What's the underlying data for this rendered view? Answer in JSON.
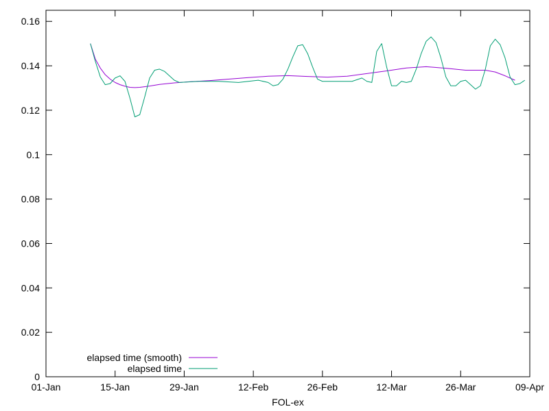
{
  "chart_data": {
    "type": "line",
    "xlabel": "FOL-ex",
    "ylabel": "",
    "title": "",
    "x_type": "date",
    "xlim": [
      "2014-01-01",
      "2014-04-09"
    ],
    "ylim": [
      0,
      0.165
    ],
    "x_ticks": [
      {
        "date": "2014-01-01",
        "label": "01-Jan"
      },
      {
        "date": "2014-01-15",
        "label": "15-Jan"
      },
      {
        "date": "2014-01-29",
        "label": "29-Jan"
      },
      {
        "date": "2014-02-12",
        "label": "12-Feb"
      },
      {
        "date": "2014-02-26",
        "label": "26-Feb"
      },
      {
        "date": "2014-03-12",
        "label": "12-Mar"
      },
      {
        "date": "2014-03-26",
        "label": "26-Mar"
      },
      {
        "date": "2014-04-09",
        "label": "09-Apr"
      }
    ],
    "y_ticks": [
      {
        "value": 0,
        "label": "0"
      },
      {
        "value": 0.02,
        "label": "0.02"
      },
      {
        "value": 0.04,
        "label": "0.04"
      },
      {
        "value": 0.06,
        "label": "0.06"
      },
      {
        "value": 0.08,
        "label": "0.08"
      },
      {
        "value": 0.1,
        "label": "0.1"
      },
      {
        "value": 0.12,
        "label": "0.12"
      },
      {
        "value": 0.14,
        "label": "0.14"
      },
      {
        "value": 0.16,
        "label": "0.16"
      }
    ],
    "grid": false,
    "legend_position": "bottom-left",
    "series": [
      {
        "name": "elapsed time (smooth)",
        "color": "#9400d3",
        "points": [
          [
            "2014-01-10",
            0.15
          ],
          [
            "2014-01-11",
            0.143
          ],
          [
            "2014-01-12",
            0.139
          ],
          [
            "2014-01-13",
            0.136
          ],
          [
            "2014-01-14",
            0.134
          ],
          [
            "2014-01-15",
            0.1325
          ],
          [
            "2014-01-16",
            0.1315
          ],
          [
            "2014-01-17",
            0.1308
          ],
          [
            "2014-01-18",
            0.1303
          ],
          [
            "2014-01-19",
            0.1302
          ],
          [
            "2014-01-20",
            0.1303
          ],
          [
            "2014-01-22",
            0.1309
          ],
          [
            "2014-01-24",
            0.1316
          ],
          [
            "2014-01-27",
            0.1323
          ],
          [
            "2014-01-30",
            0.1328
          ],
          [
            "2014-02-03",
            0.1333
          ],
          [
            "2014-02-07",
            0.134
          ],
          [
            "2014-02-11",
            0.1347
          ],
          [
            "2014-02-15",
            0.1353
          ],
          [
            "2014-02-19",
            0.1356
          ],
          [
            "2014-02-23",
            0.1352
          ],
          [
            "2014-02-27",
            0.1349
          ],
          [
            "2014-03-03",
            0.1353
          ],
          [
            "2014-03-07",
            0.1365
          ],
          [
            "2014-03-11",
            0.1377
          ],
          [
            "2014-03-15",
            0.139
          ],
          [
            "2014-03-19",
            0.1396
          ],
          [
            "2014-03-23",
            0.1389
          ],
          [
            "2014-03-27",
            0.138
          ],
          [
            "2014-03-31",
            0.138
          ],
          [
            "2014-04-02",
            0.1372
          ],
          [
            "2014-04-04",
            0.1355
          ],
          [
            "2014-04-06",
            0.1335
          ]
        ]
      },
      {
        "name": "elapsed time",
        "color": "#009e73",
        "points": [
          [
            "2014-01-10",
            0.15
          ],
          [
            "2014-01-11",
            0.142
          ],
          [
            "2014-01-12",
            0.135
          ],
          [
            "2014-01-13",
            0.1315
          ],
          [
            "2014-01-14",
            0.132
          ],
          [
            "2014-01-15",
            0.1345
          ],
          [
            "2014-01-16",
            0.1355
          ],
          [
            "2014-01-17",
            0.133
          ],
          [
            "2014-01-18",
            0.1255
          ],
          [
            "2014-01-19",
            0.117
          ],
          [
            "2014-01-20",
            0.118
          ],
          [
            "2014-01-21",
            0.126
          ],
          [
            "2014-01-22",
            0.1345
          ],
          [
            "2014-01-23",
            0.138
          ],
          [
            "2014-01-24",
            0.1385
          ],
          [
            "2014-01-25",
            0.1375
          ],
          [
            "2014-01-26",
            0.1355
          ],
          [
            "2014-01-27",
            0.1335
          ],
          [
            "2014-01-28",
            0.1325
          ],
          [
            "2014-02-01",
            0.133
          ],
          [
            "2014-02-05",
            0.133
          ],
          [
            "2014-02-09",
            0.1325
          ],
          [
            "2014-02-13",
            0.1335
          ],
          [
            "2014-02-15",
            0.1325
          ],
          [
            "2014-02-16",
            0.131
          ],
          [
            "2014-02-17",
            0.1315
          ],
          [
            "2014-02-18",
            0.134
          ],
          [
            "2014-02-19",
            0.1385
          ],
          [
            "2014-02-20",
            0.144
          ],
          [
            "2014-02-21",
            0.149
          ],
          [
            "2014-02-22",
            0.1495
          ],
          [
            "2014-02-23",
            0.1455
          ],
          [
            "2014-02-24",
            0.1395
          ],
          [
            "2014-02-25",
            0.134
          ],
          [
            "2014-02-26",
            0.133
          ],
          [
            "2014-03-01",
            0.133
          ],
          [
            "2014-03-04",
            0.133
          ],
          [
            "2014-03-06",
            0.1345
          ],
          [
            "2014-03-07",
            0.133
          ],
          [
            "2014-03-08",
            0.1325
          ],
          [
            "2014-03-09",
            0.1465
          ],
          [
            "2014-03-10",
            0.15
          ],
          [
            "2014-03-11",
            0.1395
          ],
          [
            "2014-03-12",
            0.131
          ],
          [
            "2014-03-13",
            0.131
          ],
          [
            "2014-03-14",
            0.133
          ],
          [
            "2014-03-15",
            0.1325
          ],
          [
            "2014-03-16",
            0.133
          ],
          [
            "2014-03-17",
            0.1385
          ],
          [
            "2014-03-18",
            0.1455
          ],
          [
            "2014-03-19",
            0.151
          ],
          [
            "2014-03-20",
            0.153
          ],
          [
            "2014-03-21",
            0.1505
          ],
          [
            "2014-03-22",
            0.1435
          ],
          [
            "2014-03-23",
            0.135
          ],
          [
            "2014-03-24",
            0.131
          ],
          [
            "2014-03-25",
            0.131
          ],
          [
            "2014-03-26",
            0.133
          ],
          [
            "2014-03-27",
            0.1335
          ],
          [
            "2014-03-28",
            0.1315
          ],
          [
            "2014-03-29",
            0.1295
          ],
          [
            "2014-03-30",
            0.131
          ],
          [
            "2014-03-31",
            0.1385
          ],
          [
            "2014-04-01",
            0.149
          ],
          [
            "2014-04-02",
            0.152
          ],
          [
            "2014-04-03",
            0.1495
          ],
          [
            "2014-04-04",
            0.1435
          ],
          [
            "2014-04-05",
            0.135
          ],
          [
            "2014-04-06",
            0.1315
          ],
          [
            "2014-04-07",
            0.132
          ],
          [
            "2014-04-08",
            0.1335
          ]
        ]
      }
    ]
  }
}
